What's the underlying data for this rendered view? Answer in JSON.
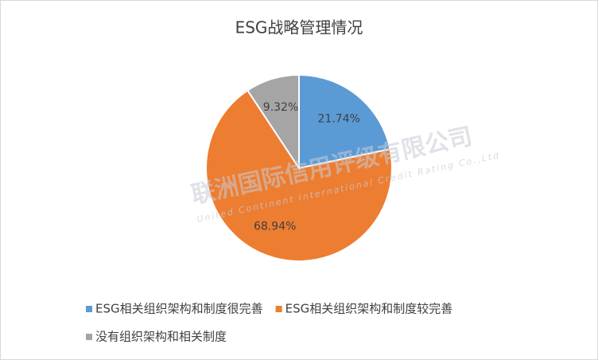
{
  "chart_data": {
    "type": "pie",
    "title": "ESG战略管理情况",
    "categories": [
      "ESG相关组织架构和制度很完善",
      "ESG相关组织架构和制度较完善",
      "没有组织架构和相关制度"
    ],
    "values": [
      21.74,
      68.94,
      9.32
    ],
    "value_labels": [
      "21.74%",
      "68.94%",
      "9.32%"
    ],
    "colors": [
      "#5b9bd5",
      "#ed7d31",
      "#a5a5a5"
    ],
    "watermark": [
      "联洲国际信用评级有限公司",
      "United Continent International Credit Rating Co.,Ltd"
    ]
  }
}
